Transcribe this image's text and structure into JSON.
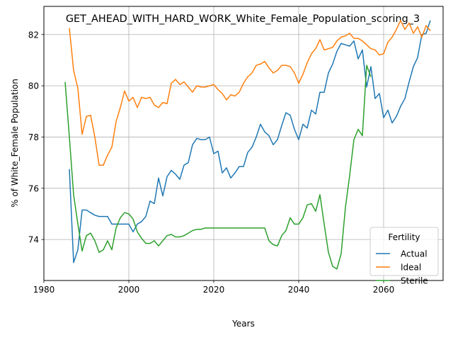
{
  "chart_data": {
    "type": "line",
    "title": "GET_AHEAD_WITH_HARD_WORK_White_Female_Population_scoring_3",
    "xlabel": "Years",
    "ylabel": "% of White_Female Population",
    "xlim": [
      1980,
      2074
    ],
    "ylim": [
      72.4,
      83.1
    ],
    "x_ticks": [
      1980,
      2000,
      2020,
      2040,
      2060
    ],
    "y_ticks": [
      74,
      76,
      78,
      80,
      82
    ],
    "grid": true,
    "legend": {
      "title": "Fertility",
      "placement": "lower right"
    },
    "series": [
      {
        "name": "Actual",
        "color": "#1f77b4",
        "points": [
          [
            1986,
            76.75
          ],
          [
            1987,
            73.1
          ],
          [
            1988,
            73.6
          ],
          [
            1989,
            75.15
          ],
          [
            1990,
            75.15
          ],
          [
            1991,
            75.05
          ],
          [
            1992,
            74.95
          ],
          [
            1993,
            74.9
          ],
          [
            1994,
            74.9
          ],
          [
            1995,
            74.9
          ],
          [
            1996,
            74.6
          ],
          [
            1997,
            74.6
          ],
          [
            1998,
            74.6
          ],
          [
            1999,
            74.6
          ],
          [
            2000,
            74.6
          ],
          [
            2001,
            74.3
          ],
          [
            2002,
            74.6
          ],
          [
            2003,
            74.7
          ],
          [
            2004,
            74.9
          ],
          [
            2005,
            75.5
          ],
          [
            2006,
            75.4
          ],
          [
            2007,
            76.4
          ],
          [
            2008,
            75.7
          ],
          [
            2009,
            76.45
          ],
          [
            2010,
            76.7
          ],
          [
            2011,
            76.55
          ],
          [
            2012,
            76.35
          ],
          [
            2013,
            76.9
          ],
          [
            2014,
            77.0
          ],
          [
            2015,
            77.7
          ],
          [
            2016,
            77.95
          ],
          [
            2017,
            77.9
          ],
          [
            2018,
            77.9
          ],
          [
            2019,
            78.0
          ],
          [
            2020,
            77.35
          ],
          [
            2021,
            77.45
          ],
          [
            2022,
            76.6
          ],
          [
            2023,
            76.8
          ],
          [
            2024,
            76.4
          ],
          [
            2025,
            76.6
          ],
          [
            2026,
            76.85
          ],
          [
            2027,
            76.85
          ],
          [
            2028,
            77.4
          ],
          [
            2029,
            77.6
          ],
          [
            2030,
            78.0
          ],
          [
            2031,
            78.5
          ],
          [
            2032,
            78.2
          ],
          [
            2033,
            78.05
          ],
          [
            2034,
            77.7
          ],
          [
            2035,
            77.9
          ],
          [
            2036,
            78.45
          ],
          [
            2037,
            78.95
          ],
          [
            2038,
            78.85
          ],
          [
            2039,
            78.3
          ],
          [
            2040,
            77.9
          ],
          [
            2041,
            78.5
          ],
          [
            2042,
            78.35
          ],
          [
            2043,
            79.05
          ],
          [
            2044,
            78.9
          ],
          [
            2045,
            79.75
          ],
          [
            2046,
            79.75
          ],
          [
            2047,
            80.5
          ],
          [
            2048,
            80.85
          ],
          [
            2049,
            81.35
          ],
          [
            2050,
            81.65
          ],
          [
            2051,
            81.6
          ],
          [
            2052,
            81.55
          ],
          [
            2053,
            81.75
          ],
          [
            2054,
            81.05
          ],
          [
            2055,
            81.4
          ],
          [
            2056,
            79.95
          ],
          [
            2057,
            80.75
          ],
          [
            2058,
            79.5
          ],
          [
            2059,
            79.7
          ],
          [
            2060,
            78.75
          ],
          [
            2061,
            79.05
          ],
          [
            2062,
            78.55
          ],
          [
            2063,
            78.8
          ],
          [
            2064,
            79.2
          ],
          [
            2065,
            79.5
          ],
          [
            2066,
            80.15
          ],
          [
            2067,
            80.75
          ],
          [
            2068,
            81.1
          ],
          [
            2069,
            82.0
          ],
          [
            2070,
            82.05
          ],
          [
            2071,
            82.55
          ]
        ]
      },
      {
        "name": "Ideal",
        "color": "#ff7f0e",
        "points": [
          [
            1986,
            82.25
          ],
          [
            1987,
            80.6
          ],
          [
            1988,
            79.9
          ],
          [
            1989,
            78.1
          ],
          [
            1990,
            78.8
          ],
          [
            1991,
            78.85
          ],
          [
            1992,
            78.0
          ],
          [
            1993,
            76.9
          ],
          [
            1994,
            76.9
          ],
          [
            1995,
            77.3
          ],
          [
            1996,
            77.6
          ],
          [
            1997,
            78.6
          ],
          [
            1998,
            79.15
          ],
          [
            1999,
            79.8
          ],
          [
            2000,
            79.4
          ],
          [
            2001,
            79.55
          ],
          [
            2002,
            79.15
          ],
          [
            2003,
            79.55
          ],
          [
            2004,
            79.5
          ],
          [
            2005,
            79.55
          ],
          [
            2006,
            79.25
          ],
          [
            2007,
            79.15
          ],
          [
            2008,
            79.35
          ],
          [
            2009,
            79.3
          ],
          [
            2010,
            80.1
          ],
          [
            2011,
            80.25
          ],
          [
            2012,
            80.05
          ],
          [
            2013,
            80.15
          ],
          [
            2014,
            79.95
          ],
          [
            2015,
            79.75
          ],
          [
            2016,
            80.0
          ],
          [
            2017,
            79.95
          ],
          [
            2018,
            79.95
          ],
          [
            2019,
            80.0
          ],
          [
            2020,
            80.05
          ],
          [
            2021,
            79.85
          ],
          [
            2022,
            79.7
          ],
          [
            2023,
            79.45
          ],
          [
            2024,
            79.65
          ],
          [
            2025,
            79.6
          ],
          [
            2026,
            79.75
          ],
          [
            2027,
            80.1
          ],
          [
            2028,
            80.35
          ],
          [
            2029,
            80.5
          ],
          [
            2030,
            80.8
          ],
          [
            2031,
            80.85
          ],
          [
            2032,
            80.95
          ],
          [
            2033,
            80.7
          ],
          [
            2034,
            80.5
          ],
          [
            2035,
            80.6
          ],
          [
            2036,
            80.8
          ],
          [
            2037,
            80.8
          ],
          [
            2038,
            80.75
          ],
          [
            2039,
            80.5
          ],
          [
            2040,
            80.1
          ],
          [
            2041,
            80.45
          ],
          [
            2042,
            80.9
          ],
          [
            2043,
            81.25
          ],
          [
            2044,
            81.45
          ],
          [
            2045,
            81.8
          ],
          [
            2046,
            81.4
          ],
          [
            2047,
            81.45
          ],
          [
            2048,
            81.5
          ],
          [
            2049,
            81.75
          ],
          [
            2050,
            81.9
          ],
          [
            2051,
            81.95
          ],
          [
            2052,
            82.05
          ],
          [
            2053,
            81.85
          ],
          [
            2054,
            81.85
          ],
          [
            2055,
            81.75
          ],
          [
            2056,
            81.6
          ],
          [
            2057,
            81.45
          ],
          [
            2058,
            81.4
          ],
          [
            2059,
            81.2
          ],
          [
            2060,
            81.25
          ],
          [
            2061,
            81.7
          ],
          [
            2062,
            81.9
          ],
          [
            2063,
            82.2
          ],
          [
            2064,
            82.55
          ],
          [
            2065,
            82.2
          ],
          [
            2066,
            82.45
          ],
          [
            2067,
            82.05
          ],
          [
            2068,
            82.3
          ],
          [
            2069,
            81.9
          ],
          [
            2070,
            82.35
          ],
          [
            2071,
            82.15
          ]
        ]
      },
      {
        "name": "Sterile",
        "color": "#2ca02c",
        "points": [
          [
            1985,
            80.15
          ],
          [
            1986,
            78.0
          ],
          [
            1987,
            75.75
          ],
          [
            1988,
            74.6
          ],
          [
            1989,
            73.55
          ],
          [
            1990,
            74.15
          ],
          [
            1991,
            74.25
          ],
          [
            1992,
            73.95
          ],
          [
            1993,
            73.5
          ],
          [
            1994,
            73.6
          ],
          [
            1995,
            73.95
          ],
          [
            1996,
            73.6
          ],
          [
            1997,
            74.45
          ],
          [
            1998,
            74.85
          ],
          [
            1999,
            75.05
          ],
          [
            2000,
            75.0
          ],
          [
            2001,
            74.8
          ],
          [
            2002,
            74.3
          ],
          [
            2003,
            74.05
          ],
          [
            2004,
            73.85
          ],
          [
            2005,
            73.85
          ],
          [
            2006,
            73.95
          ],
          [
            2007,
            73.75
          ],
          [
            2008,
            73.95
          ],
          [
            2009,
            74.15
          ],
          [
            2010,
            74.2
          ],
          [
            2011,
            74.1
          ],
          [
            2012,
            74.1
          ],
          [
            2013,
            74.15
          ],
          [
            2014,
            74.25
          ],
          [
            2015,
            74.35
          ],
          [
            2016,
            74.4
          ],
          [
            2017,
            74.4
          ],
          [
            2018,
            74.45
          ],
          [
            2019,
            74.45
          ],
          [
            2020,
            74.45
          ],
          [
            2021,
            74.45
          ],
          [
            2022,
            74.45
          ],
          [
            2023,
            74.45
          ],
          [
            2024,
            74.45
          ],
          [
            2025,
            74.45
          ],
          [
            2026,
            74.45
          ],
          [
            2027,
            74.45
          ],
          [
            2028,
            74.45
          ],
          [
            2029,
            74.45
          ],
          [
            2030,
            74.45
          ],
          [
            2031,
            74.45
          ],
          [
            2032,
            74.45
          ],
          [
            2033,
            73.95
          ],
          [
            2034,
            73.8
          ],
          [
            2035,
            73.75
          ],
          [
            2036,
            74.15
          ],
          [
            2037,
            74.35
          ],
          [
            2038,
            74.85
          ],
          [
            2039,
            74.6
          ],
          [
            2040,
            74.6
          ],
          [
            2041,
            74.85
          ],
          [
            2042,
            75.35
          ],
          [
            2043,
            75.4
          ],
          [
            2044,
            75.1
          ],
          [
            2045,
            75.75
          ],
          [
            2046,
            74.6
          ],
          [
            2047,
            73.5
          ],
          [
            2048,
            72.95
          ],
          [
            2049,
            72.85
          ],
          [
            2050,
            73.45
          ],
          [
            2051,
            75.25
          ],
          [
            2052,
            76.5
          ],
          [
            2053,
            77.9
          ],
          [
            2054,
            78.3
          ],
          [
            2055,
            78.05
          ],
          [
            2056,
            80.8
          ],
          [
            2057,
            80.35
          ]
        ]
      }
    ]
  }
}
